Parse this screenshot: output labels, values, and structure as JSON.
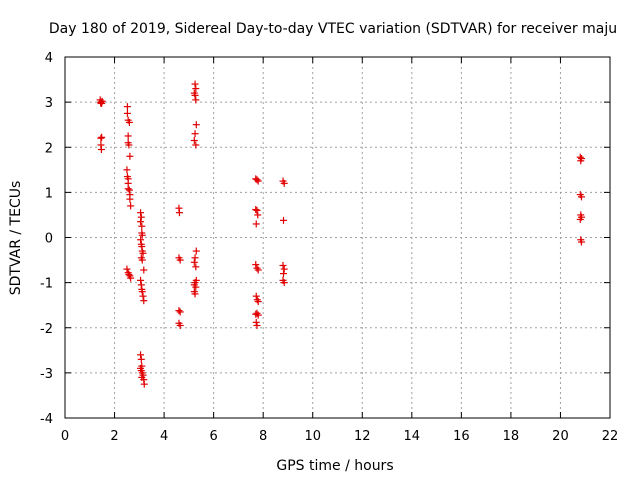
{
  "chart_data": {
    "type": "scatter",
    "title": "Day 180 of 2019, Sidereal Day-to-day VTEC variation (SDTVAR) for receiver maju",
    "xlabel": "GPS time / hours",
    "ylabel": "SDTVAR / TECUs",
    "xlim": [
      0,
      22
    ],
    "ylim": [
      -4,
      4
    ],
    "x_ticks": [
      "0",
      "2",
      "4",
      "6",
      "8",
      "10",
      "12",
      "14",
      "16",
      "18",
      "20",
      "22"
    ],
    "y_ticks": [
      "-4",
      "-3",
      "-2",
      "-1",
      "0",
      "1",
      "2",
      "3",
      "4"
    ],
    "grid": true,
    "marker": "plus",
    "color": "#e00000",
    "series": [
      {
        "name": "SDTVAR",
        "points": [
          [
            1.42,
            3.05
          ],
          [
            1.45,
            3.0
          ],
          [
            1.48,
            2.97
          ],
          [
            1.5,
            3.02
          ],
          [
            1.44,
            2.98
          ],
          [
            1.45,
            2.2
          ],
          [
            1.48,
            2.22
          ],
          [
            1.45,
            2.05
          ],
          [
            1.47,
            1.95
          ],
          [
            2.52,
            2.9
          ],
          [
            2.52,
            2.75
          ],
          [
            2.55,
            2.6
          ],
          [
            2.6,
            2.55
          ],
          [
            2.55,
            2.25
          ],
          [
            2.55,
            2.1
          ],
          [
            2.58,
            2.05
          ],
          [
            2.62,
            1.8
          ],
          [
            2.5,
            1.5
          ],
          [
            2.52,
            1.35
          ],
          [
            2.55,
            1.3
          ],
          [
            2.55,
            1.2
          ],
          [
            2.55,
            1.08
          ],
          [
            2.6,
            1.05
          ],
          [
            2.62,
            0.95
          ],
          [
            2.62,
            0.85
          ],
          [
            2.65,
            0.7
          ],
          [
            2.5,
            -0.7
          ],
          [
            2.55,
            -0.78
          ],
          [
            2.58,
            -0.82
          ],
          [
            2.62,
            -0.85
          ],
          [
            2.65,
            -0.9
          ],
          [
            3.05,
            0.55
          ],
          [
            3.08,
            0.45
          ],
          [
            3.05,
            0.35
          ],
          [
            3.1,
            0.25
          ],
          [
            3.1,
            0.1
          ],
          [
            3.12,
            0.05
          ],
          [
            3.05,
            -0.05
          ],
          [
            3.08,
            -0.15
          ],
          [
            3.1,
            -0.2
          ],
          [
            3.12,
            -0.3
          ],
          [
            3.15,
            -0.35
          ],
          [
            3.08,
            -0.45
          ],
          [
            3.12,
            -0.5
          ],
          [
            3.18,
            -0.72
          ],
          [
            3.05,
            -0.95
          ],
          [
            3.08,
            -1.05
          ],
          [
            3.1,
            -1.15
          ],
          [
            3.12,
            -1.2
          ],
          [
            3.15,
            -1.3
          ],
          [
            3.18,
            -1.4
          ],
          [
            3.05,
            -2.6
          ],
          [
            3.08,
            -2.7
          ],
          [
            3.1,
            -2.85
          ],
          [
            3.08,
            -2.95
          ],
          [
            3.12,
            -3.0
          ],
          [
            3.15,
            -3.05
          ],
          [
            3.18,
            -3.15
          ],
          [
            3.2,
            -3.25
          ],
          [
            3.1,
            -3.1
          ],
          [
            3.05,
            -2.9
          ],
          [
            4.6,
            0.65
          ],
          [
            4.62,
            0.55
          ],
          [
            4.6,
            -0.45
          ],
          [
            4.65,
            -0.5
          ],
          [
            4.6,
            -1.62
          ],
          [
            4.65,
            -1.65
          ],
          [
            4.6,
            -1.9
          ],
          [
            4.65,
            -1.95
          ],
          [
            5.25,
            3.4
          ],
          [
            5.28,
            3.3
          ],
          [
            5.22,
            3.2
          ],
          [
            5.25,
            3.15
          ],
          [
            5.28,
            3.05
          ],
          [
            5.3,
            2.5
          ],
          [
            5.25,
            2.3
          ],
          [
            5.22,
            2.15
          ],
          [
            5.28,
            2.05
          ],
          [
            5.3,
            -0.3
          ],
          [
            5.25,
            -0.45
          ],
          [
            5.22,
            -0.55
          ],
          [
            5.28,
            -0.65
          ],
          [
            5.3,
            -0.95
          ],
          [
            5.25,
            -1.0
          ],
          [
            5.22,
            -1.05
          ],
          [
            5.28,
            -1.1
          ],
          [
            5.22,
            -1.2
          ],
          [
            5.25,
            -1.25
          ],
          [
            7.7,
            1.3
          ],
          [
            7.75,
            1.28
          ],
          [
            7.8,
            1.25
          ],
          [
            7.7,
            0.62
          ],
          [
            7.75,
            0.6
          ],
          [
            7.78,
            0.5
          ],
          [
            7.72,
            0.3
          ],
          [
            7.7,
            -0.6
          ],
          [
            7.75,
            -0.68
          ],
          [
            7.8,
            -0.72
          ],
          [
            7.72,
            -1.3
          ],
          [
            7.76,
            -1.38
          ],
          [
            7.8,
            -1.42
          ],
          [
            7.7,
            -1.7
          ],
          [
            7.75,
            -1.68
          ],
          [
            7.8,
            -1.72
          ],
          [
            7.72,
            -1.88
          ],
          [
            7.75,
            -1.95
          ],
          [
            8.8,
            1.25
          ],
          [
            8.85,
            1.2
          ],
          [
            8.82,
            0.38
          ],
          [
            8.8,
            -0.62
          ],
          [
            8.85,
            -0.7
          ],
          [
            8.82,
            -0.8
          ],
          [
            8.8,
            -0.95
          ],
          [
            8.85,
            -1.0
          ],
          [
            20.8,
            1.78
          ],
          [
            20.85,
            1.75
          ],
          [
            20.82,
            1.7
          ],
          [
            20.8,
            0.95
          ],
          [
            20.85,
            0.9
          ],
          [
            20.82,
            0.5
          ],
          [
            20.85,
            0.45
          ],
          [
            20.8,
            0.4
          ],
          [
            20.82,
            -0.05
          ],
          [
            20.85,
            -0.1
          ]
        ]
      }
    ]
  }
}
